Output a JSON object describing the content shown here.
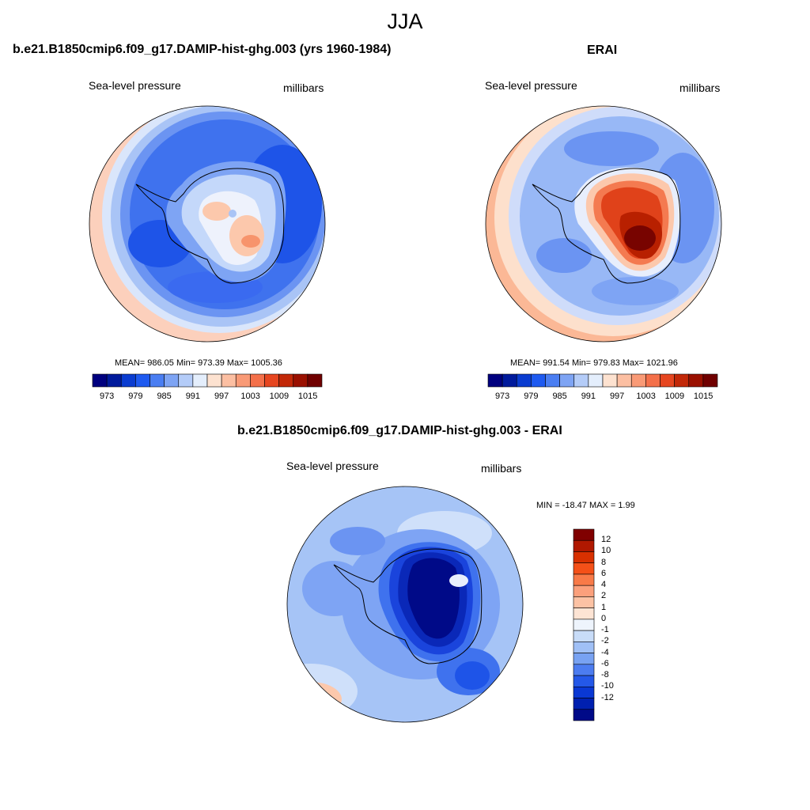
{
  "figure": {
    "title": "JJA"
  },
  "panels": [
    {
      "title": "b.e21.B1850cmip6.f09_g17.DAMIP-hist-ghg.003 (yrs 1960-1984)",
      "left_label": "Sea-level pressure",
      "right_label": "millibars",
      "stats": "MEAN= 986.05  Min= 973.39  Max= 1005.36"
    },
    {
      "title": "ERAI",
      "left_label": "Sea-level pressure",
      "right_label": "millibars",
      "stats": "MEAN= 991.54  Min= 979.83  Max= 1021.96"
    },
    {
      "title": "b.e21.B1850cmip6.f09_g17.DAMIP-hist-ghg.003 - ERAI",
      "left_label": "Sea-level pressure",
      "right_label": "millibars",
      "stats": "MIN = -18.47 MAX =   1.99"
    }
  ],
  "slp_colorbar": {
    "colors": [
      "#00007f",
      "#001a9c",
      "#0a3cd0",
      "#1e5af0",
      "#4a7ef2",
      "#7ea4f4",
      "#b4ccf8",
      "#e4eefc",
      "#fde2d0",
      "#fcbfa2",
      "#f99a76",
      "#f4704a",
      "#e64620",
      "#c22808",
      "#9a1000",
      "#700000"
    ],
    "ticks": [
      "973",
      "979",
      "985",
      "991",
      "997",
      "1003",
      "1009",
      "1015"
    ]
  },
  "diff_colorbar": {
    "colors_top_to_bottom": [
      "#800000",
      "#b01800",
      "#d83000",
      "#f45018",
      "#f87a48",
      "#fba07c",
      "#fcc2a4",
      "#fde4d4",
      "#eef4fc",
      "#c8dcf8",
      "#a0c0f6",
      "#78a2f2",
      "#4c7cf0",
      "#2458e8",
      "#0a38d4",
      "#0020b0",
      "#000a88"
    ],
    "ticks": [
      "12",
      "10",
      "8",
      "6",
      "4",
      "2",
      "1",
      "0",
      "-1",
      "-2",
      "-4",
      "-6",
      "-8",
      "-10",
      "-12"
    ]
  }
}
